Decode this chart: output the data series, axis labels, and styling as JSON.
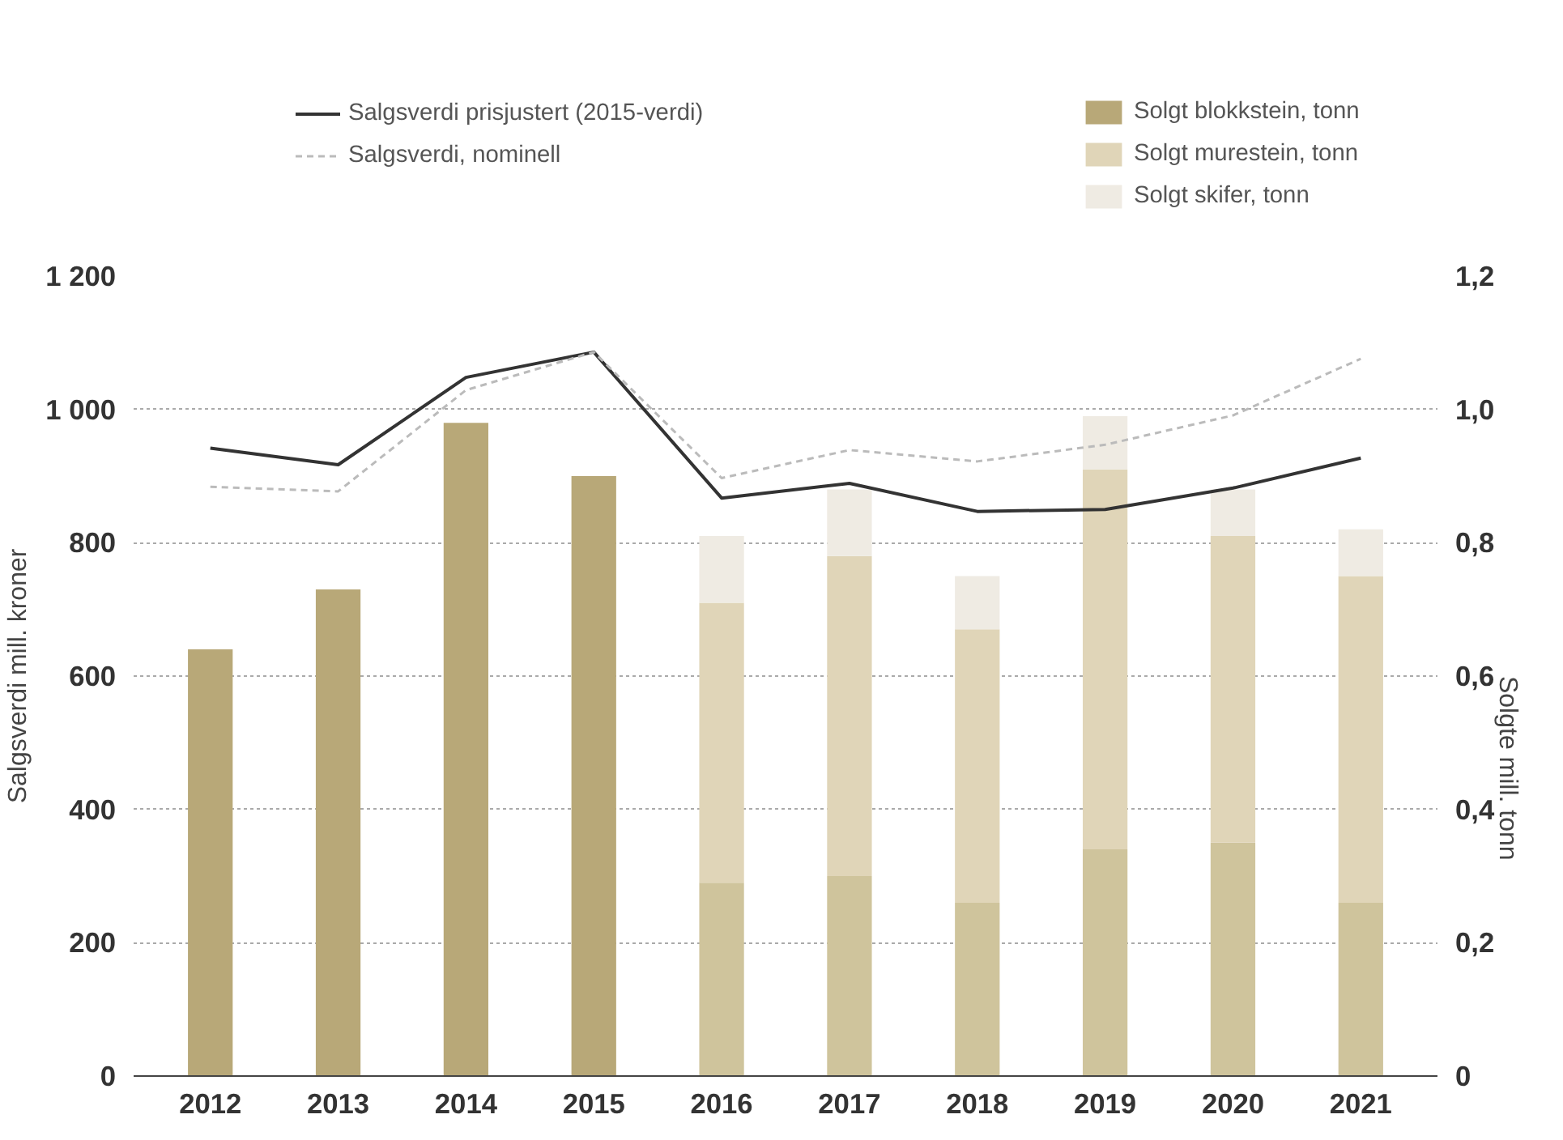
{
  "chart_data": {
    "type": "bar",
    "stacked": true,
    "ylabel": "Salgsverdi mill. kroner",
    "y2label": "Solgte mill. tonn",
    "categories": [
      "2012",
      "2013",
      "2014",
      "2015",
      "2016",
      "2017",
      "2018",
      "2019",
      "2020",
      "2021"
    ],
    "series": [
      {
        "name": "Salgsverdi prisjustert (2015-verdi)",
        "type": "line",
        "line_style": "solid",
        "color": "#333333",
        "values": [
          942,
          917,
          1048,
          1086,
          867,
          889,
          847,
          850,
          882,
          927
        ]
      },
      {
        "name": "Salgsverdi, nominell",
        "type": "line",
        "line_style": "dashed",
        "color": "#bbbbbb",
        "values": [
          884,
          877,
          1029,
          1086,
          897,
          939,
          922,
          947,
          991,
          1076
        ]
      },
      {
        "name": "Solgt blokkstein, tonn",
        "type": "bar",
        "axis": "y2",
        "color": "#b8a878",
        "colors": [
          "#b8a878",
          "#b8a878",
          "#b8a878",
          "#b8a878",
          "#cfc49c",
          "#cfc49c",
          "#cfc49c",
          "#cfc49c",
          "#cfc49c",
          "#cfc49c"
        ],
        "values": [
          0.64,
          0.73,
          0.98,
          0.9,
          0.29,
          0.3,
          0.26,
          0.34,
          0.35,
          0.26
        ]
      },
      {
        "name": "Solgt murestein, tonn",
        "type": "bar",
        "axis": "y2",
        "color": "#e0d5b8",
        "values": [
          null,
          null,
          null,
          null,
          0.42,
          0.48,
          0.41,
          0.57,
          0.46,
          0.49
        ]
      },
      {
        "name": "Solgt skifer, tonn",
        "type": "bar",
        "axis": "y2",
        "color": "#efebe3",
        "values": [
          null,
          null,
          null,
          null,
          0.1,
          0.1,
          0.08,
          0.08,
          0.07,
          0.07
        ]
      }
    ],
    "ylim": [
      0,
      1200
    ],
    "yticks": [
      0,
      200,
      400,
      600,
      800,
      {
        "value": 1000,
        "label": "1 000"
      },
      {
        "value": 1200,
        "label": "1 200"
      }
    ],
    "y2lim": [
      0,
      1.2
    ],
    "y2ticks": [
      {
        "value": 0,
        "label": "0"
      },
      {
        "value": 0.2,
        "label": "0,2"
      },
      {
        "value": 0.4,
        "label": "0,4"
      },
      {
        "value": 0.6,
        "label": "0,6"
      },
      {
        "value": 0.8,
        "label": "0,8"
      },
      {
        "value": 1.0,
        "label": "1,0"
      },
      {
        "value": 1.2,
        "label": "1,2"
      }
    ],
    "grid": "y",
    "legend": "top"
  }
}
